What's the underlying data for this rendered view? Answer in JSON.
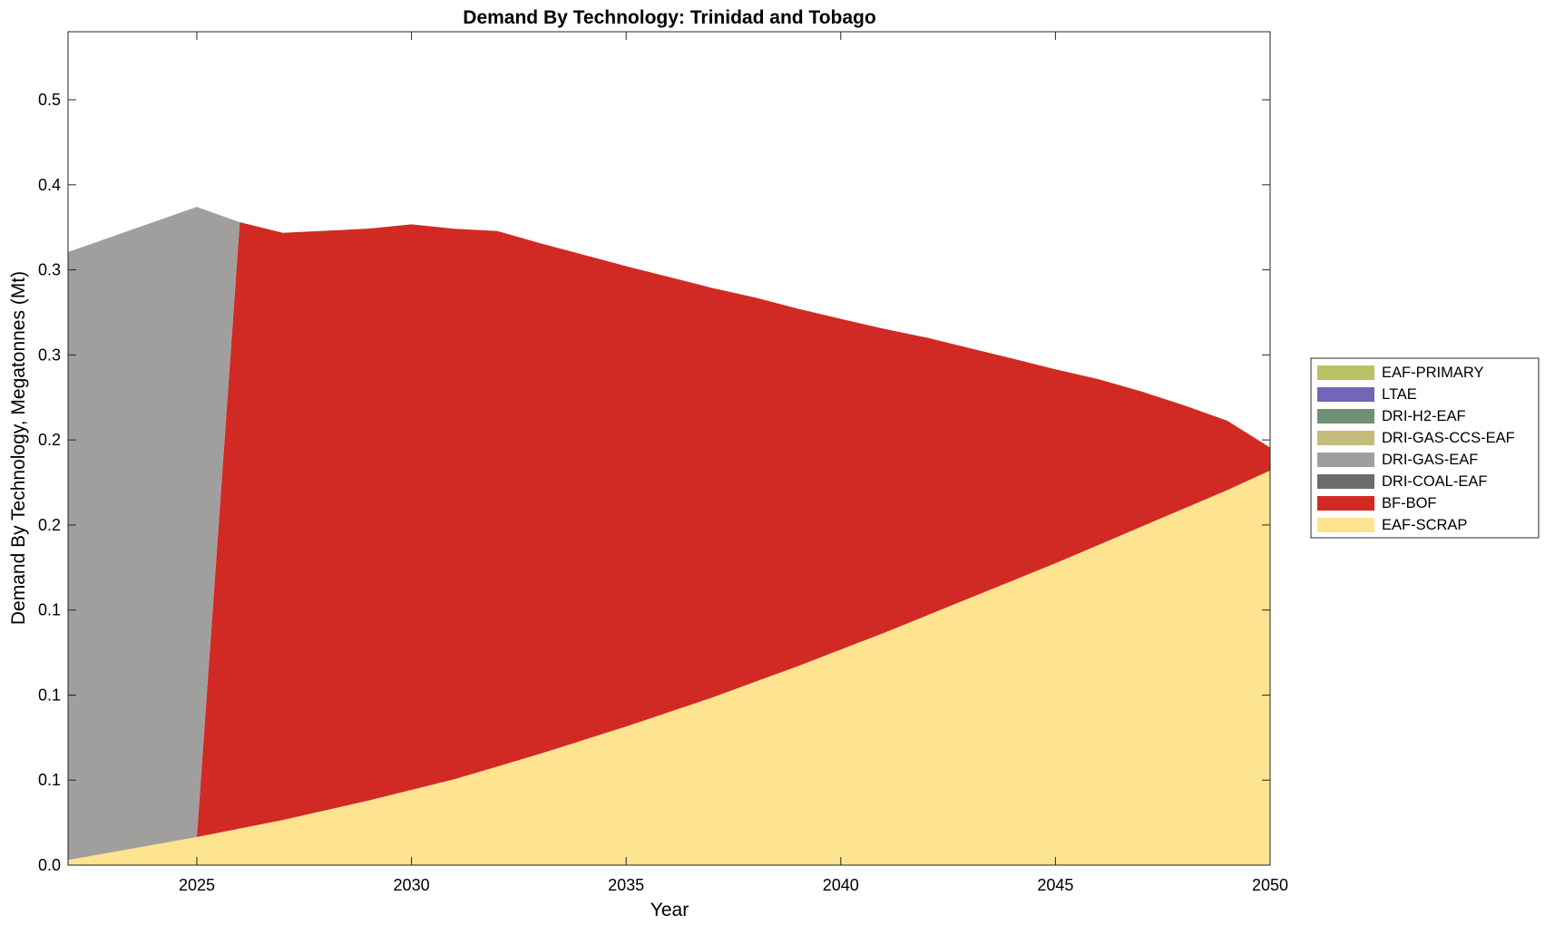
{
  "chart_data": {
    "type": "area",
    "title": "Demand By Technology: Trinidad and Tobago",
    "xlabel": "Year",
    "ylabel": "Demand By Technology, Megatonnes (Mt)",
    "xlim": [
      2022,
      2050
    ],
    "ylim": [
      0,
      0.49
    ],
    "grid": false,
    "legend_position": "right",
    "x_ticks": [
      2025,
      2030,
      2035,
      2040,
      2045,
      2050
    ],
    "x_tick_labels": [
      "2025",
      "2030",
      "2035",
      "2040",
      "2045",
      "2050"
    ],
    "y_ticks": [
      0,
      0.05,
      0.1,
      0.15,
      0.2,
      0.25,
      0.3,
      0.35,
      0.4,
      0.45
    ],
    "y_tick_labels": [
      "0.0",
      "0.1",
      "0.1",
      "0.1",
      "0.2",
      "0.2",
      "0.3",
      "0.3",
      "0.4",
      "0.5"
    ],
    "stack_order": [
      "EAF-SCRAP",
      "BF-BOF",
      "DRI-COAL-EAF",
      "DRI-GAS-EAF",
      "DRI-GAS-CCS-EAF",
      "DRI-H2-EAF",
      "LTAE",
      "EAF-PRIMARY"
    ],
    "series": [
      {
        "name": "EAF-SCRAP",
        "color": "#fee391",
        "x": [
          2022,
          2025,
          2027,
          2029,
          2031,
          2033,
          2035,
          2037,
          2039,
          2041,
          2043,
          2045,
          2047,
          2049,
          2050
        ],
        "y": [
          0.003,
          0.0165,
          0.0265,
          0.038,
          0.0505,
          0.0655,
          0.0815,
          0.0985,
          0.117,
          0.1365,
          0.157,
          0.1775,
          0.199,
          0.2205,
          0.232
        ]
      },
      {
        "name": "BF-BOF",
        "color": "#d12a24",
        "x": [
          2022,
          2025,
          2026,
          2027,
          2029,
          2030,
          2032,
          2035,
          2038,
          2040,
          2042,
          2044,
          2046,
          2047,
          2048,
          2049,
          2050
        ],
        "y": [
          0,
          0,
          0.3565,
          0.3453,
          0.3362,
          0.3325,
          0.3148,
          0.2707,
          0.226,
          0.1944,
          0.1634,
          0.1306,
          0.0975,
          0.0795,
          0.0606,
          0.0408,
          0.0135
        ]
      },
      {
        "name": "DRI-GAS-EAF",
        "color": "#a09f9e",
        "x": [
          2022,
          2025,
          2026,
          2050
        ],
        "y": [
          0.3575,
          0.3705,
          0,
          0
        ]
      },
      {
        "name": "DRI-COAL-EAF",
        "color": "#6c6c6c",
        "x": [
          2022,
          2050
        ],
        "y": [
          0,
          0
        ]
      },
      {
        "name": "DRI-GAS-CCS-EAF",
        "color": "#c4bb7d",
        "x": [
          2022,
          2050
        ],
        "y": [
          0,
          0
        ]
      },
      {
        "name": "DRI-H2-EAF",
        "color": "#6e9176",
        "x": [
          2022,
          2050
        ],
        "y": [
          0,
          0
        ]
      },
      {
        "name": "LTAE",
        "color": "#7366b8",
        "x": [
          2022,
          2050
        ],
        "y": [
          0,
          0
        ]
      },
      {
        "name": "EAF-PRIMARY",
        "color": "#b9c166",
        "x": [
          2022,
          2050
        ],
        "y": [
          0,
          0
        ]
      }
    ],
    "legend": [
      {
        "label": "EAF-PRIMARY",
        "color": "#b9c166"
      },
      {
        "label": "LTAE",
        "color": "#7366b8"
      },
      {
        "label": "DRI-H2-EAF",
        "color": "#6e9176"
      },
      {
        "label": "DRI-GAS-CCS-EAF",
        "color": "#c4bb7d"
      },
      {
        "label": "DRI-GAS-EAF",
        "color": "#a09f9e"
      },
      {
        "label": "DRI-COAL-EAF",
        "color": "#6c6c6c"
      },
      {
        "label": "BF-BOF",
        "color": "#d12a24"
      },
      {
        "label": "EAF-SCRAP",
        "color": "#fee391"
      }
    ]
  }
}
